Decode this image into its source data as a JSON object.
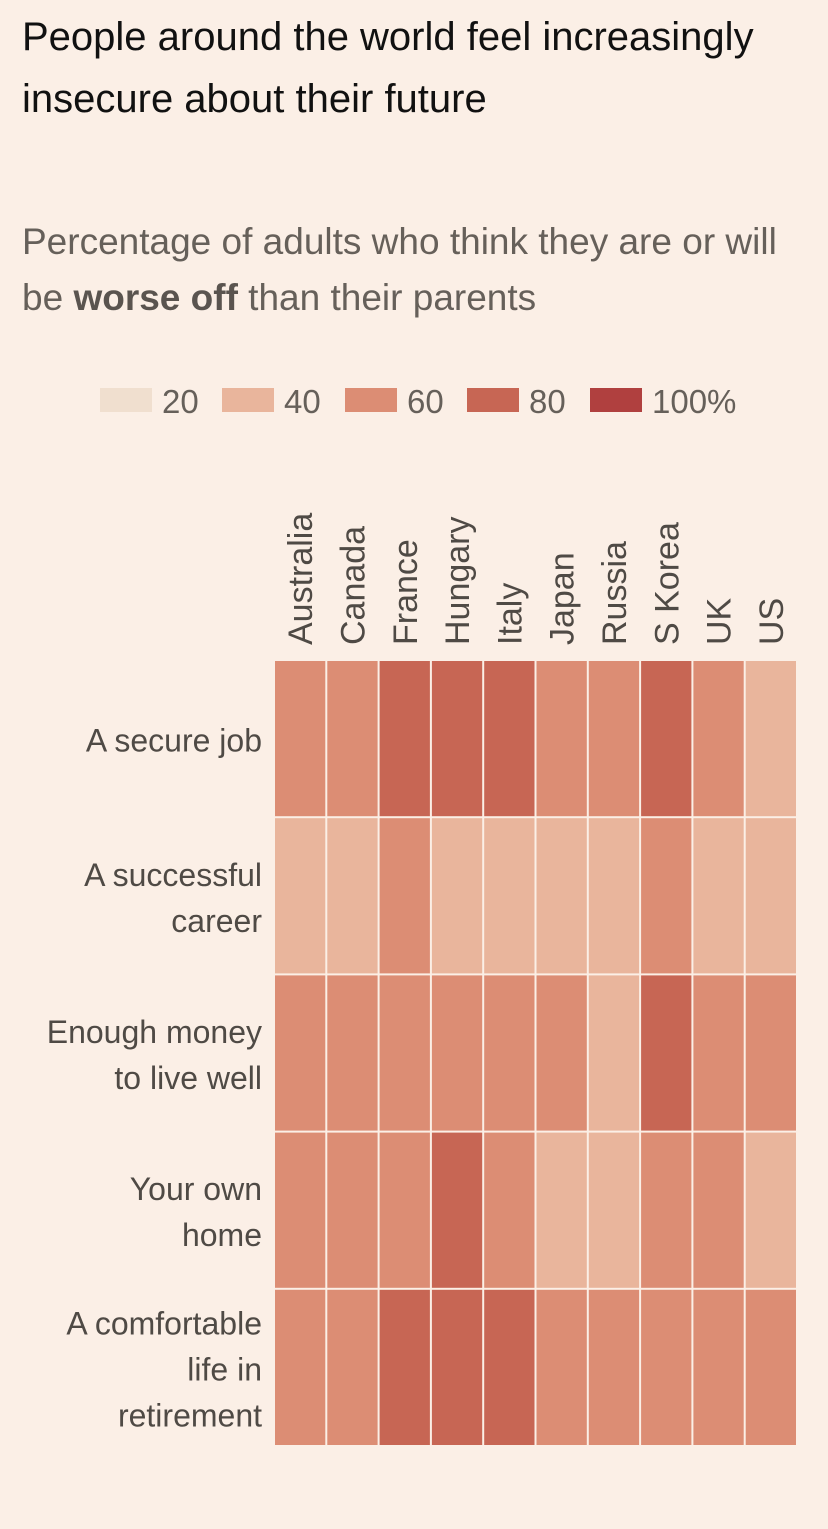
{
  "title": "People around the world feel increasingly insecure about their future",
  "subtitle": {
    "prefix": "Percentage of adults who think they are or will be ",
    "emphasis": "worse off",
    "suffix": " than their parents"
  },
  "colors": {
    "background": "#fbefe6",
    "scale": [
      "#f0dfcf",
      "#e9b59c",
      "#dc8d74",
      "#c76654",
      "#b0403f"
    ]
  },
  "chart_data": {
    "type": "heatmap",
    "title": "People around the world feel increasingly insecure about their future",
    "subtitle": "Percentage of adults who think they are or will be worse off than their parents",
    "legend": {
      "position": "top",
      "stops": [
        20,
        40,
        60,
        80,
        100
      ],
      "labels": [
        "20",
        "40",
        "60",
        "80",
        "100%"
      ]
    },
    "columns": [
      "Australia",
      "Canada",
      "France",
      "Hungary",
      "Italy",
      "Japan",
      "Russia",
      "S Korea",
      "UK",
      "US"
    ],
    "rows": [
      {
        "label": [
          "A secure job"
        ],
        "values": [
          60,
          60,
          80,
          80,
          80,
          60,
          60,
          80,
          60,
          40
        ]
      },
      {
        "label": [
          "A successful",
          "career"
        ],
        "values": [
          40,
          40,
          60,
          40,
          40,
          40,
          40,
          60,
          40,
          40
        ]
      },
      {
        "label": [
          "Enough money",
          "to live well"
        ],
        "values": [
          60,
          60,
          60,
          60,
          60,
          60,
          40,
          80,
          60,
          60
        ]
      },
      {
        "label": [
          "Your own",
          "home"
        ],
        "values": [
          60,
          60,
          60,
          80,
          60,
          40,
          40,
          60,
          60,
          40
        ]
      },
      {
        "label": [
          "A comfortable",
          "life in",
          "retirement"
        ],
        "values": [
          60,
          60,
          80,
          80,
          80,
          60,
          60,
          60,
          60,
          60
        ]
      }
    ]
  }
}
